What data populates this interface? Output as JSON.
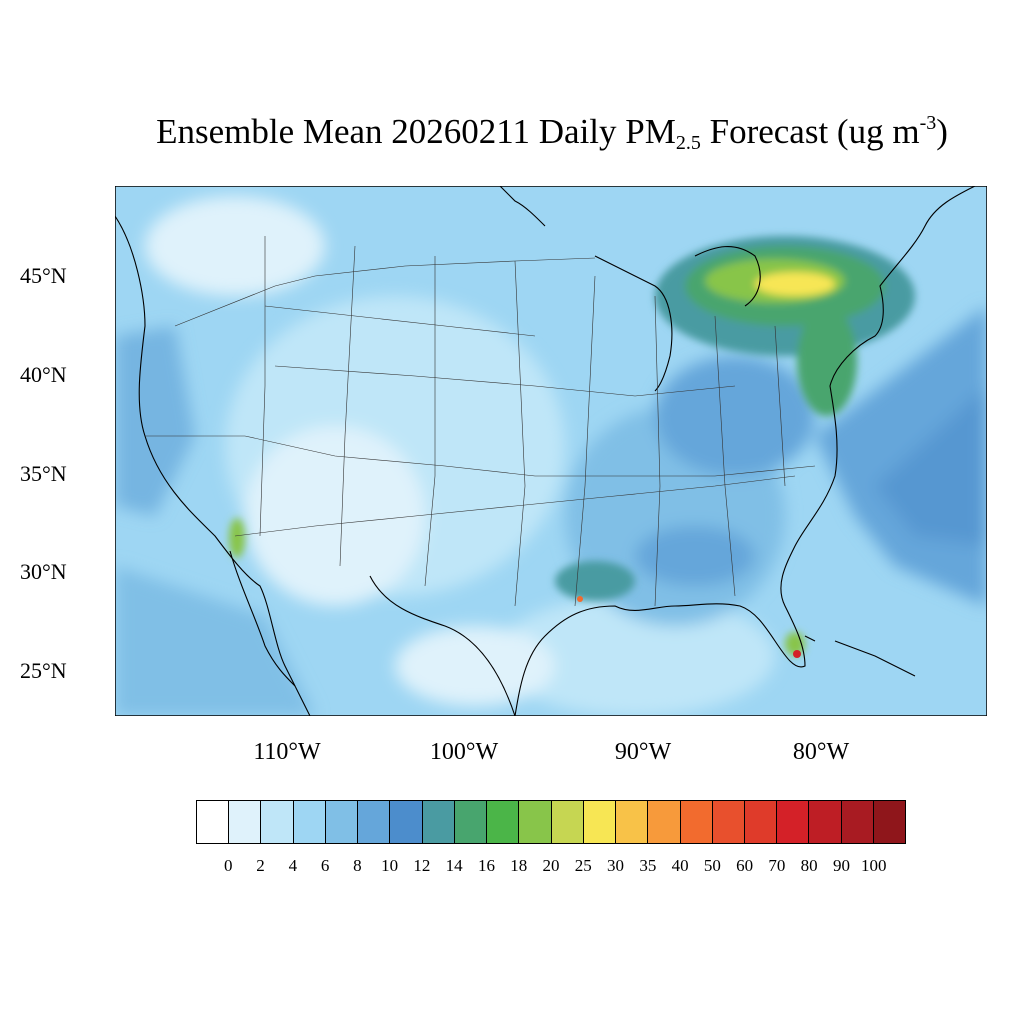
{
  "title": {
    "prefix": "Ensemble Mean 20260211 Daily PM",
    "subscript": "2.5",
    "middle": " Forecast (ug m",
    "superscript": "-3",
    "suffix": ")"
  },
  "latitude_labels": [
    "45°N",
    "40°N",
    "35°N",
    "30°N",
    "25°N"
  ],
  "longitude_labels": [
    "110°W",
    "100°W",
    "90°W",
    "80°W"
  ],
  "colorbar": {
    "labels": [
      "0",
      "2",
      "4",
      "6",
      "8",
      "10",
      "12",
      "14",
      "16",
      "18",
      "20",
      "25",
      "30",
      "35",
      "40",
      "50",
      "60",
      "70",
      "80",
      "90",
      "100"
    ],
    "colors": [
      "#ffffff",
      "#dff2fb",
      "#bfe6f8",
      "#9ed6f3",
      "#80bfe6",
      "#65a6da",
      "#4c8dcc",
      "#4a9ba2",
      "#48a56e",
      "#4bb548",
      "#88c54a",
      "#c6d652",
      "#f7e654",
      "#f8c248",
      "#f79a3b",
      "#f26b2e",
      "#e8502d",
      "#df3b2a",
      "#d42128",
      "#be1e25",
      "#a81b22",
      "#8f161b"
    ]
  },
  "map": {
    "highlights": [
      {
        "name": "Northeast / Great Lakes plume",
        "level": "25-30"
      },
      {
        "name": "Southeast Arizona",
        "level": "18-20"
      },
      {
        "name": "South Florida",
        "level": "80-100"
      },
      {
        "name": "Louisiana point",
        "level": "40-50"
      }
    ]
  }
}
